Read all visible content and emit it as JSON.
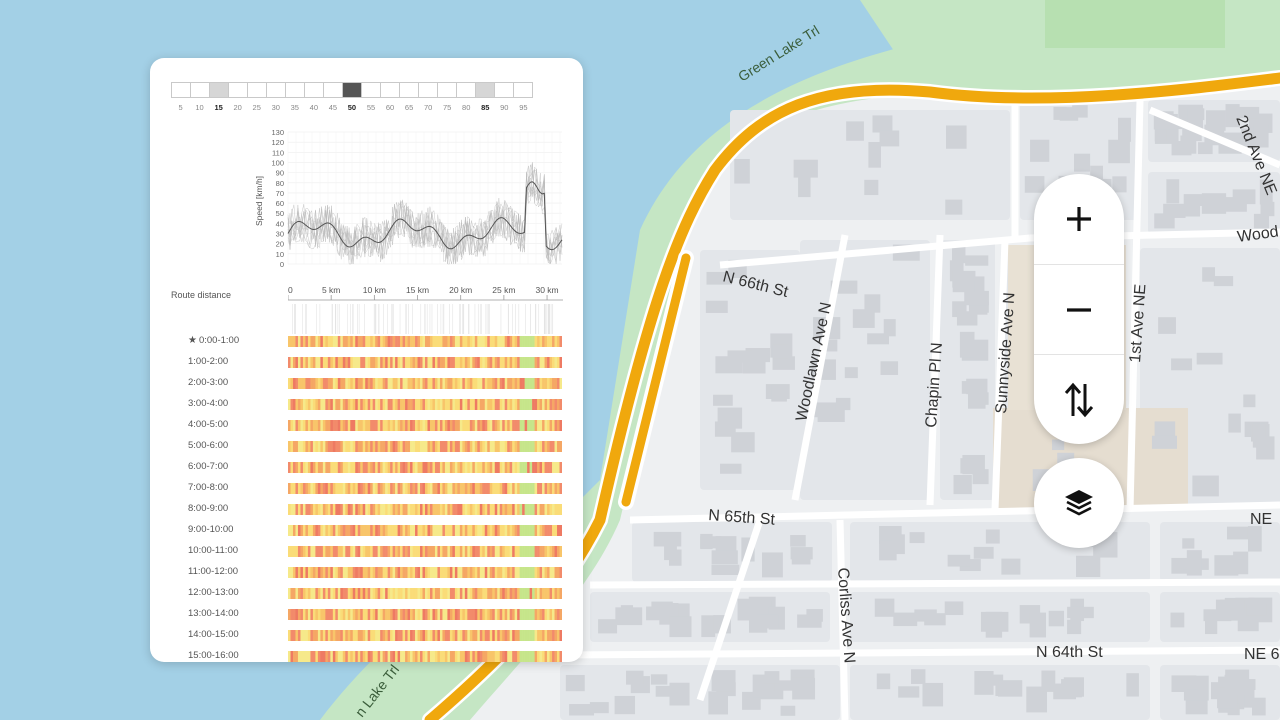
{
  "map": {
    "street_labels": [
      "N 66th St",
      "N 65th St",
      "N 64th St",
      "Woodlawn Ave N",
      "Chapin Pl N",
      "Sunnyside Ave N",
      "1st Ave NE",
      "2nd Ave NE",
      "Corliss Ave N",
      "Wood",
      "NE",
      "NE 6"
    ],
    "park_labels": [
      "Green Lake Trl",
      "n Lake Trl"
    ],
    "colors": {
      "water": "#a3d0e6",
      "park": "#c5e6c4",
      "land": "#eef0f2",
      "block": "#e3e6ea",
      "road": "#ffffff",
      "route": "#f0a80d",
      "building": "#cfd2d7",
      "school": "#e5ddd0"
    }
  },
  "panel": {
    "percentiles": {
      "labels": [
        "5",
        "10",
        "15",
        "20",
        "25",
        "30",
        "35",
        "40",
        "45",
        "50",
        "55",
        "60",
        "65",
        "70",
        "75",
        "80",
        "85",
        "90",
        "95"
      ],
      "highlighted_light": [
        "15",
        "85"
      ],
      "highlighted_dark": "50",
      "bold_labels": [
        "15",
        "50",
        "85"
      ]
    },
    "speed_chart": {
      "ylabel": "Speed [km/h]",
      "yticks": [
        "130",
        "120",
        "110",
        "100",
        "90",
        "80",
        "70",
        "60",
        "50",
        "40",
        "30",
        "20",
        "10",
        "0"
      ]
    },
    "route_distance": {
      "title": "Route distance",
      "ticks": [
        "0",
        "5 km",
        "10 km",
        "15 km",
        "20 km",
        "25 km",
        "30 km"
      ]
    },
    "time_rows": [
      "0:00-1:00",
      "1:00-2:00",
      "2:00-3:00",
      "3:00-4:00",
      "4:00-5:00",
      "5:00-6:00",
      "6:00-7:00",
      "7:00-8:00",
      "8:00-9:00",
      "9:00-10:00",
      "10:00-11:00",
      "11:00-12:00",
      "12:00-13:00",
      "13:00-14:00",
      "14:00-15:00",
      "15:00-16:00"
    ],
    "starred_row": "0:00-1:00"
  },
  "controls": {
    "zoom_in_icon": "plus-icon",
    "zoom_out_icon": "minus-icon",
    "swap_icon": "swap-vertical-icon",
    "layers_icon": "layers-icon"
  }
}
